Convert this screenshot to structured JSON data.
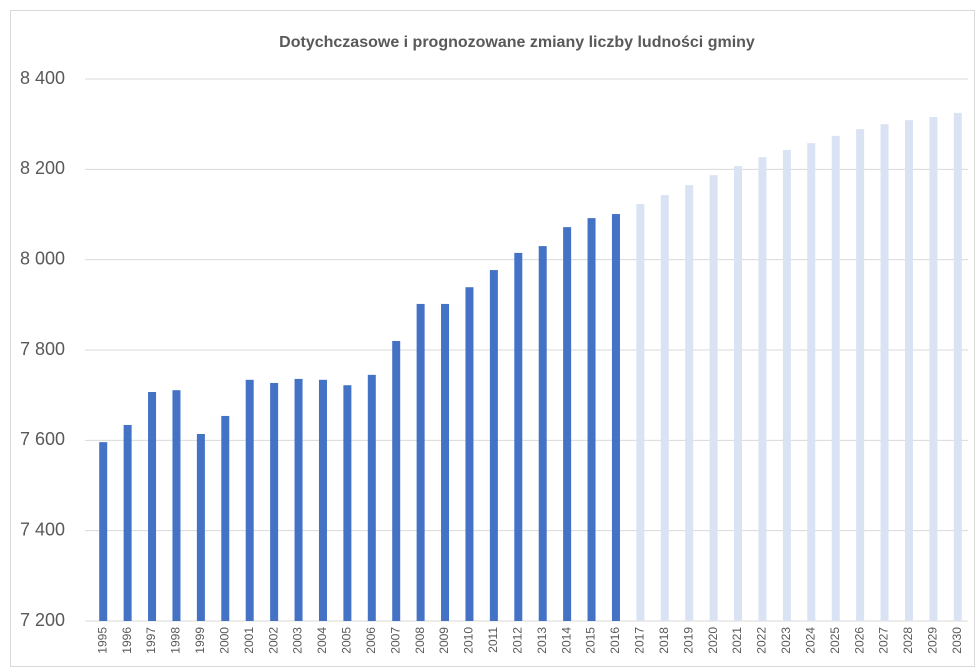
{
  "chart_data": {
    "type": "bar",
    "title": "Dotychczasowe i prognozowane zmiany liczby ludności gminy",
    "categories": [
      "1995",
      "1996",
      "1997",
      "1998",
      "1999",
      "2000",
      "2001",
      "2002",
      "2003",
      "2004",
      "2005",
      "2006",
      "2007",
      "2008",
      "2009",
      "2010",
      "2011",
      "2012",
      "2013",
      "2014",
      "2015",
      "2016",
      "2017",
      "2018",
      "2019",
      "2020",
      "2021",
      "2022",
      "2023",
      "2024",
      "2025",
      "2026",
      "2027",
      "2028",
      "2029",
      "2030"
    ],
    "values": [
      7596,
      7634,
      7707,
      7711,
      7614,
      7654,
      7734,
      7727,
      7736,
      7734,
      7722,
      7745,
      7820,
      7902,
      7902,
      7939,
      7977,
      8015,
      8030,
      8072,
      8092,
      8101,
      8123,
      8143,
      8165,
      8187,
      8207,
      8227,
      8243,
      8258,
      8274,
      8289,
      8300,
      8309,
      8316,
      8325
    ],
    "colors": [
      "#4472c4",
      "#4472c4",
      "#4472c4",
      "#4472c4",
      "#4472c4",
      "#4472c4",
      "#4472c4",
      "#4472c4",
      "#4472c4",
      "#4472c4",
      "#4472c4",
      "#4472c4",
      "#4472c4",
      "#4472c4",
      "#4472c4",
      "#4472c4",
      "#4472c4",
      "#4472c4",
      "#4472c4",
      "#4472c4",
      "#4472c4",
      "#4472c4",
      "#dae3f3",
      "#dae3f3",
      "#dae3f3",
      "#dae3f3",
      "#dae3f3",
      "#dae3f3",
      "#dae3f3",
      "#dae3f3",
      "#dae3f3",
      "#dae3f3",
      "#dae3f3",
      "#dae3f3",
      "#dae3f3",
      "#dae3f3"
    ],
    "ylim": [
      7200,
      8400
    ],
    "yticks": [
      {
        "value": 7200,
        "label": "7 200"
      },
      {
        "value": 7400,
        "label": "7 400"
      },
      {
        "value": 7600,
        "label": "7 600"
      },
      {
        "value": 7800,
        "label": "7 800"
      },
      {
        "value": 8000,
        "label": "8 000"
      },
      {
        "value": 8200,
        "label": "8 200"
      },
      {
        "value": 8400,
        "label": "8 400"
      }
    ],
    "grid": true
  }
}
